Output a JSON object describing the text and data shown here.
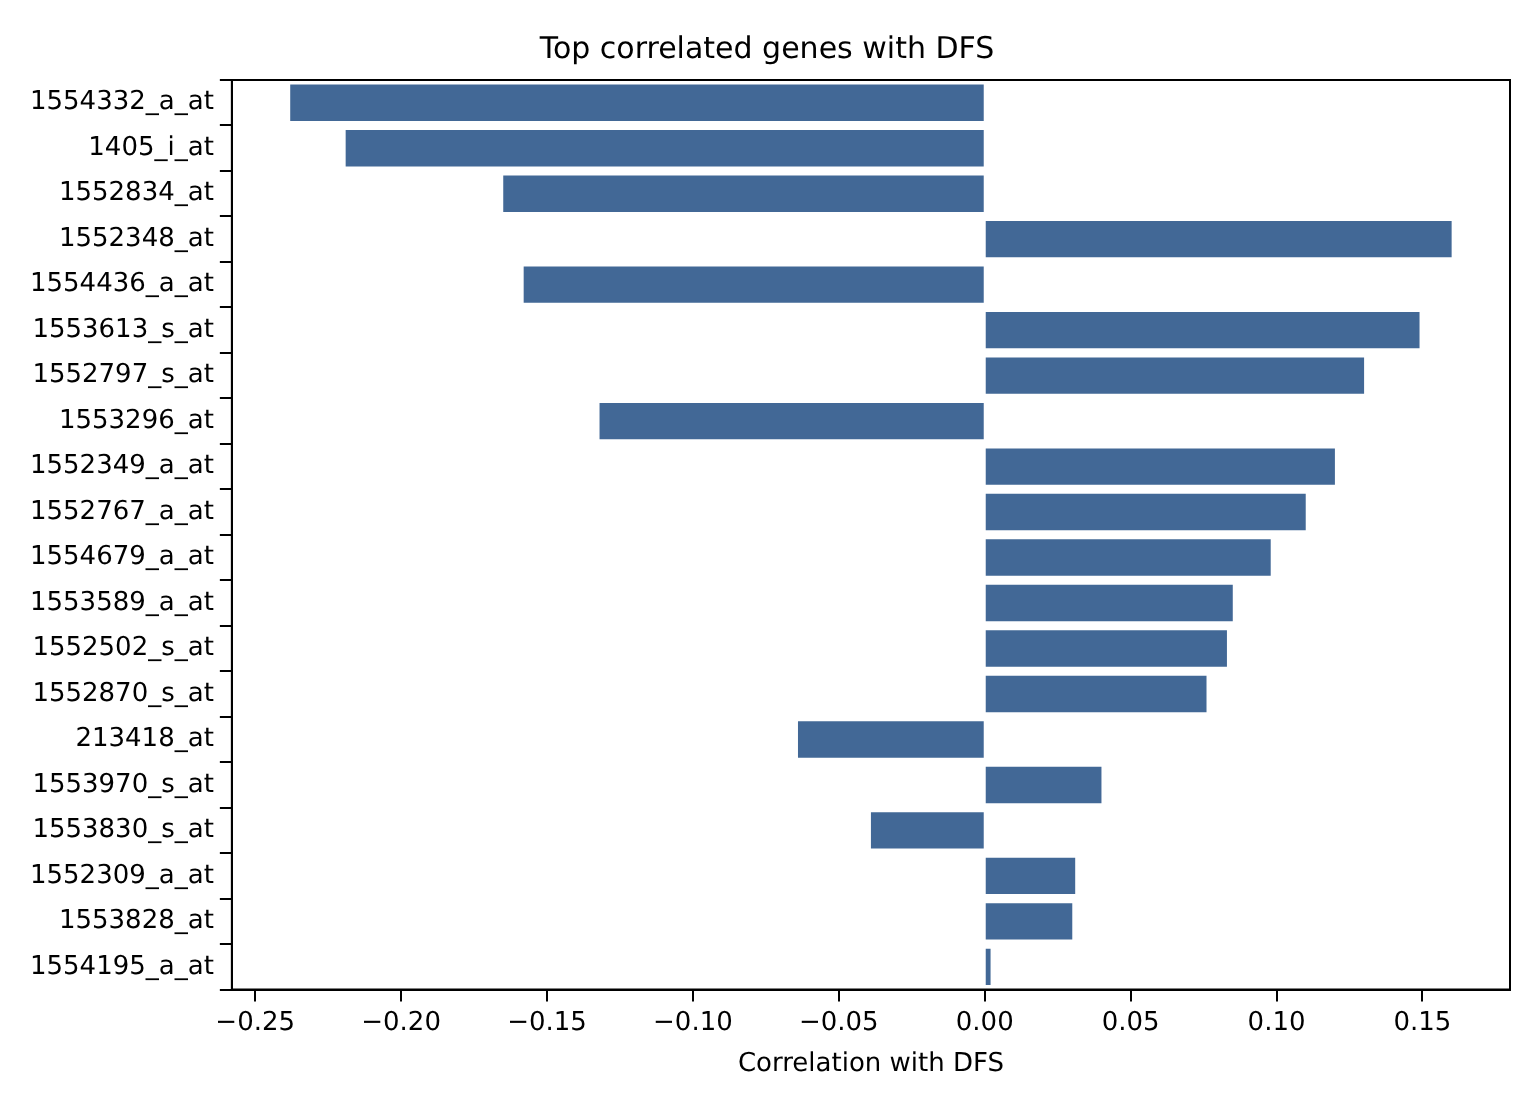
{
  "chart_data": {
    "type": "bar",
    "orientation": "horizontal",
    "title": "Top correlated genes with DFS",
    "xlabel": "Correlation with DFS",
    "categories": [
      "1554332_a_at",
      "1405_i_at",
      "1552834_at",
      "1552348_at",
      "1554436_a_at",
      "1553613_s_at",
      "1552797_s_at",
      "1553296_at",
      "1552349_a_at",
      "1552767_a_at",
      "1554679_a_at",
      "1553589_a_at",
      "1552502_s_at",
      "1552870_s_at",
      "213418_at",
      "1553970_s_at",
      "1553830_s_at",
      "1552309_a_at",
      "1553828_at",
      "1554195_a_at"
    ],
    "values": [
      -0.238,
      -0.219,
      -0.165,
      0.16,
      -0.158,
      0.149,
      0.13,
      -0.132,
      0.12,
      0.11,
      0.098,
      0.085,
      0.083,
      0.076,
      -0.064,
      0.04,
      -0.039,
      0.031,
      0.03,
      0.002
    ],
    "color": "#426896",
    "xlim": [
      -0.258,
      0.18
    ],
    "xticks": [
      {
        "value": -0.25,
        "label": "−0.25"
      },
      {
        "value": -0.2,
        "label": "−0.20"
      },
      {
        "value": -0.15,
        "label": "−0.15"
      },
      {
        "value": -0.1,
        "label": "−0.10"
      },
      {
        "value": -0.05,
        "label": "−0.05"
      },
      {
        "value": 0,
        "label": "0.00"
      },
      {
        "value": 0.05,
        "label": "0.05"
      },
      {
        "value": 0.1,
        "label": "0.10"
      },
      {
        "value": 0.15,
        "label": "0.15"
      }
    ],
    "grid": false,
    "legend": false
  }
}
